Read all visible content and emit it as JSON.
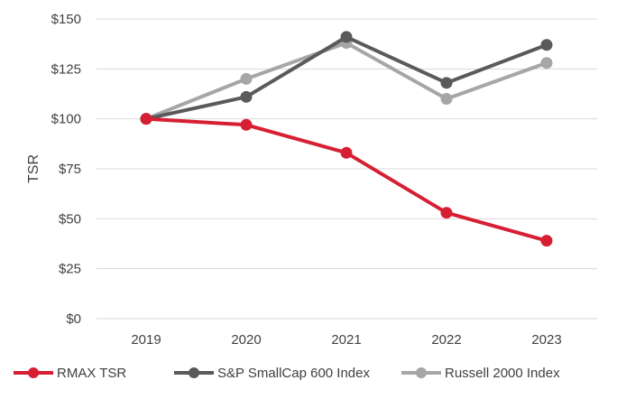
{
  "chart_data": {
    "type": "line",
    "title": "",
    "xlabel": "",
    "ylabel": "TSR",
    "categories": [
      "2019",
      "2020",
      "2021",
      "2022",
      "2023"
    ],
    "ylim": [
      0,
      150
    ],
    "yticks": [
      0,
      25,
      50,
      75,
      100,
      125,
      150
    ],
    "ytick_labels": [
      "$0",
      "$25",
      "$50",
      "$75",
      "$100",
      "$125",
      "$150"
    ],
    "grid": true,
    "legend_position": "bottom",
    "series": [
      {
        "name": "RMAX TSR",
        "color": "#d71f34",
        "values": [
          100,
          97,
          83,
          53,
          39
        ]
      },
      {
        "name": "S&P SmallCap 600 Index",
        "color": "#595a5c",
        "values": [
          100,
          111,
          141,
          118,
          137
        ]
      },
      {
        "name": "Russell 2000 Index",
        "color": "#a6a6a6",
        "values": [
          100,
          120,
          138,
          110,
          128
        ]
      }
    ]
  }
}
